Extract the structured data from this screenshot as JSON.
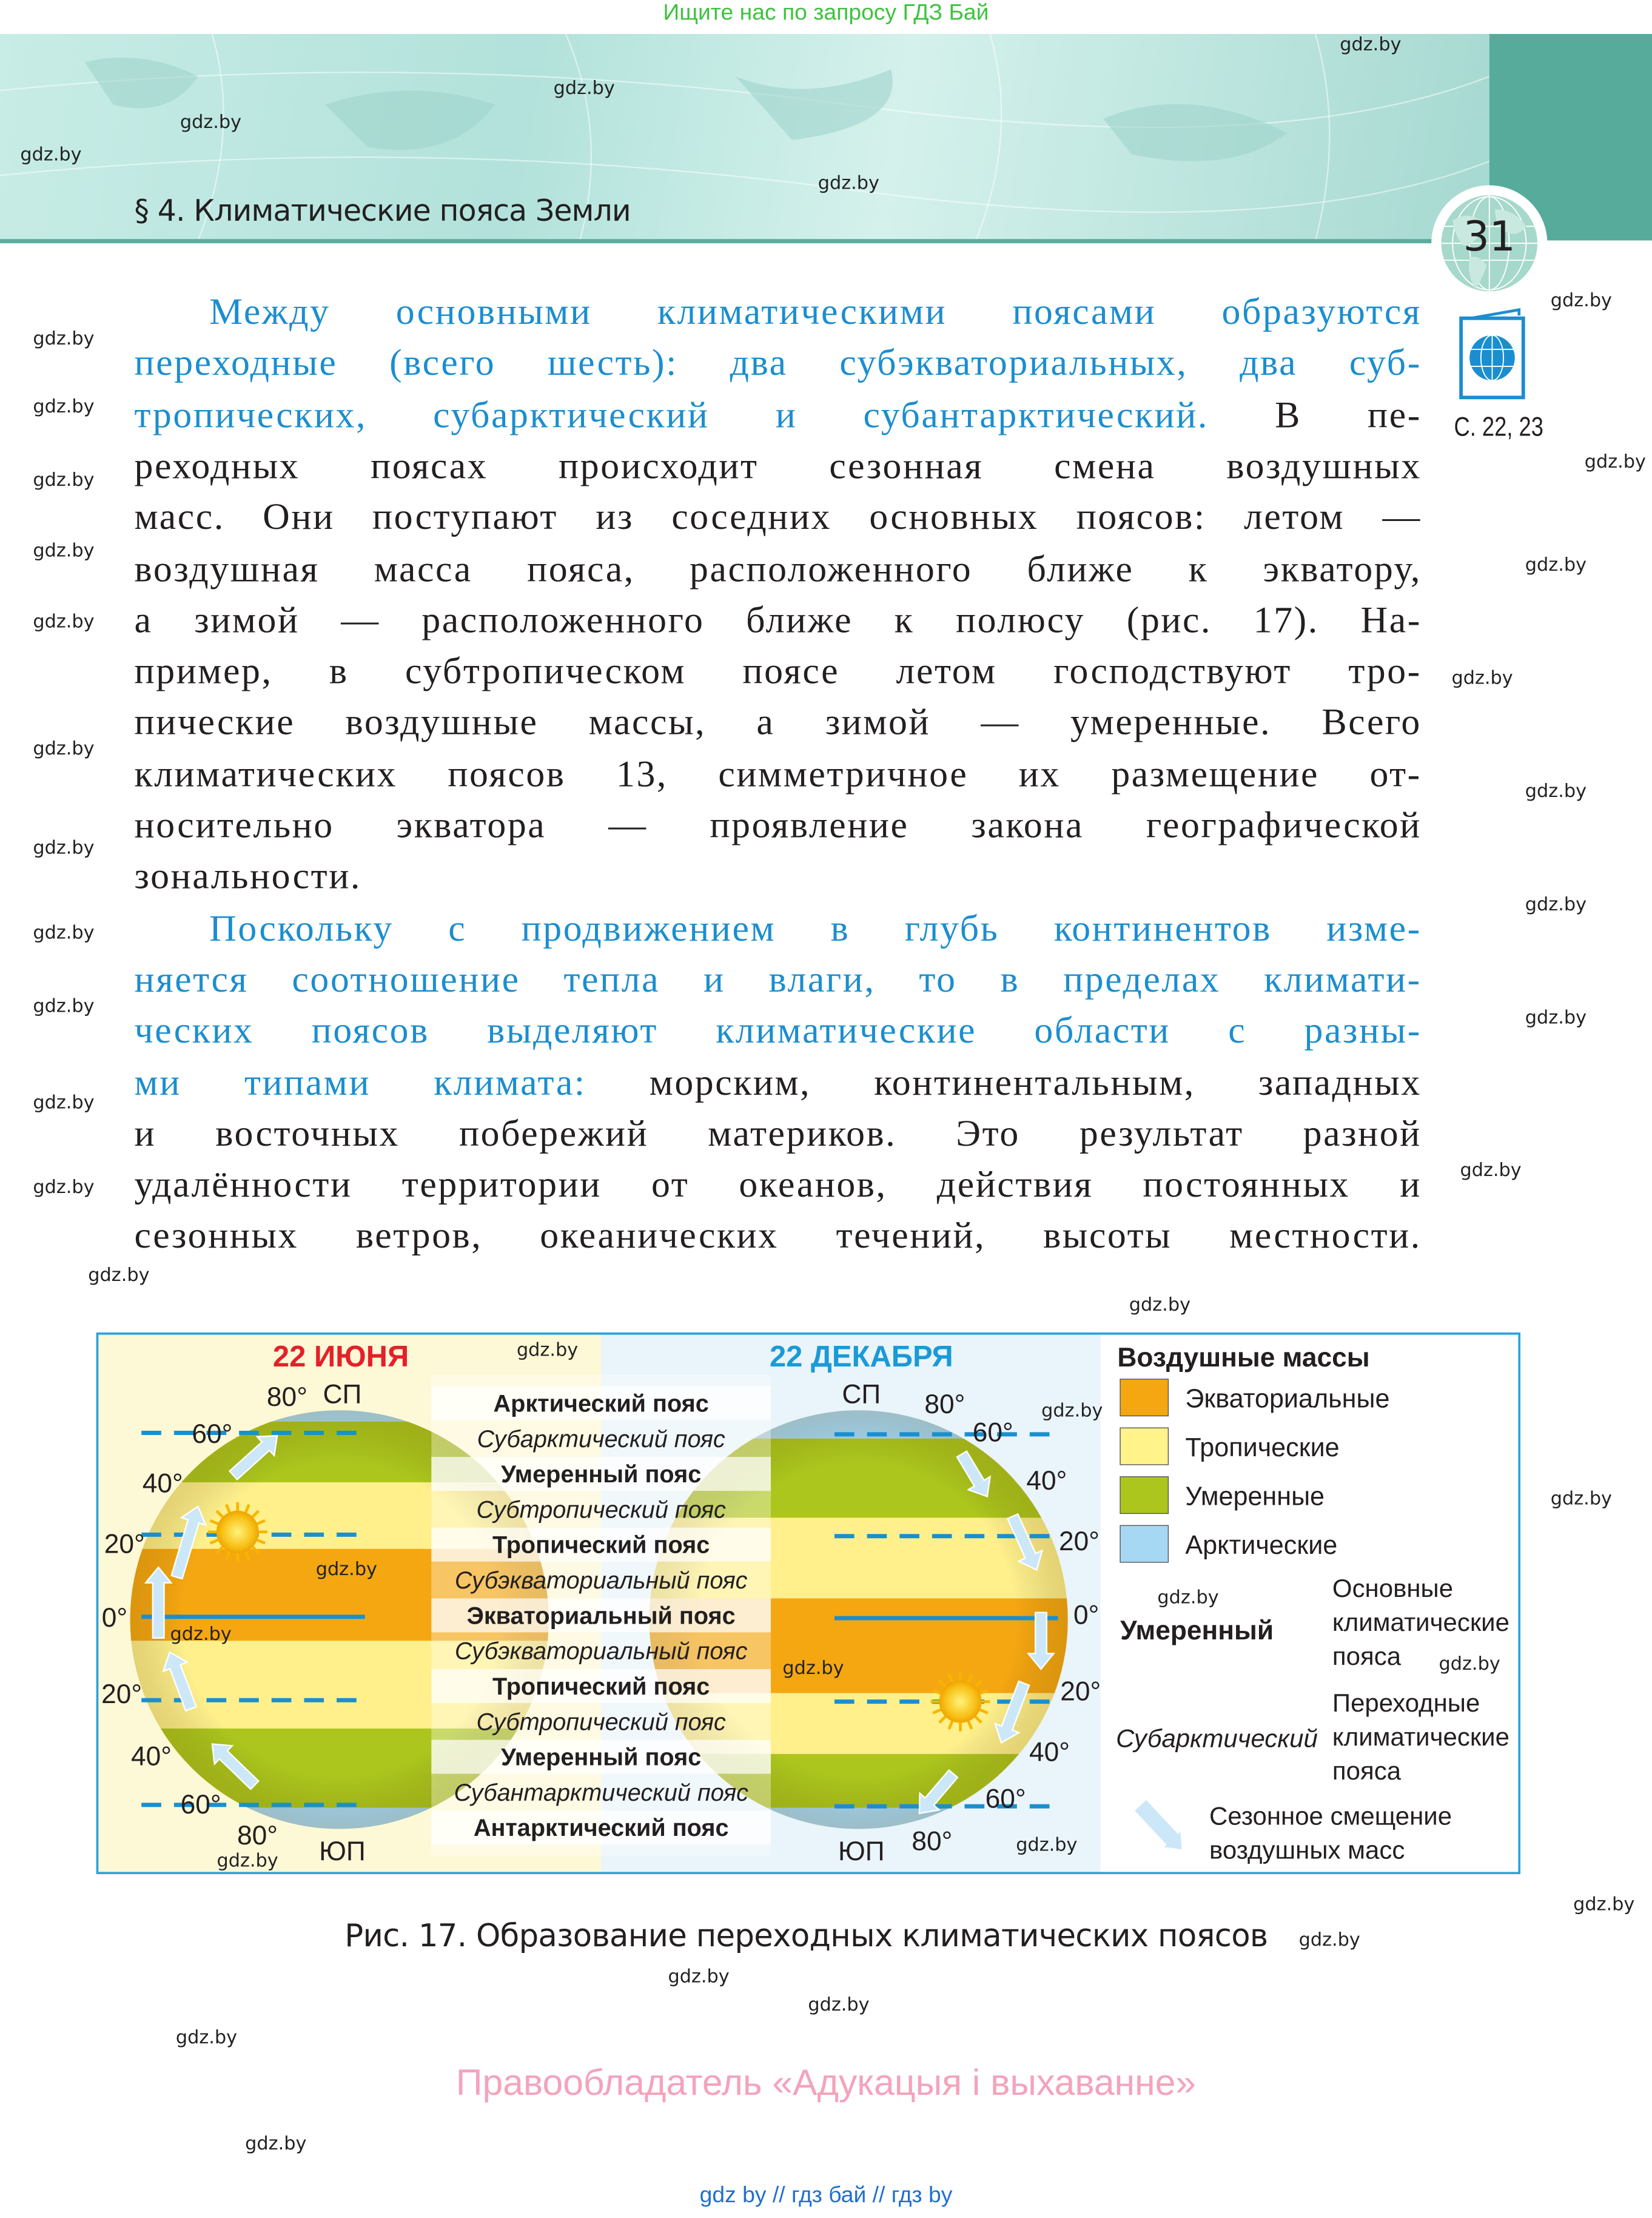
{
  "top_note": "Ищите нас по запросу ГДЗ Бай",
  "header": {
    "section_title": "§ 4. Климатические пояса Земли",
    "page_number": "31",
    "atlas_ref": "С. 22, 23"
  },
  "watermark": "gdz.by",
  "body": {
    "lines": [
      [
        {
          "t": "Между основными климатическими поясами образуются",
          "blue": true
        }
      ],
      [
        {
          "t": "переходные (всего шесть): два субэкваториальных, два суб-",
          "blue": true
        }
      ],
      [
        {
          "t": "тропических, субарктический и субантарктический.",
          "blue": true
        },
        {
          "t": " В пе-",
          "blue": false
        }
      ],
      [
        {
          "t": "реходных поясах происходит сезонная смена воздушных",
          "blue": false
        }
      ],
      [
        {
          "t": "масс. Они поступают из соседних основных поясов: летом —",
          "blue": false
        }
      ],
      [
        {
          "t": "воздушная масса пояса, расположенного ближе к экватору,",
          "blue": false
        }
      ],
      [
        {
          "t": "а зимой — расположенного ближе к полюсу (рис. 17). На-",
          "blue": false
        }
      ],
      [
        {
          "t": "пример, в субтропическом поясе летом господствуют тро-",
          "blue": false
        }
      ],
      [
        {
          "t": "пические воздушные массы, а зимой — умеренные. Всего",
          "blue": false
        }
      ],
      [
        {
          "t": "климатических поясов 13, симметричное их размещение от-",
          "blue": false
        }
      ],
      [
        {
          "t": "носительно экватора — проявление закона географической",
          "blue": false
        }
      ],
      [
        {
          "t": "зональности.",
          "blue": false
        }
      ],
      [
        {
          "t": "Поскольку с продвижением в глубь континентов изме-",
          "blue": true
        }
      ],
      [
        {
          "t": "няется соотношение тепла и влаги, то в пределах климати-",
          "blue": true
        }
      ],
      [
        {
          "t": "ческих поясов выделяют климатические области с разны-",
          "blue": true
        }
      ],
      [
        {
          "t": "ми типами климата:",
          "blue": true
        },
        {
          "t": " морским, континентальным, западных",
          "blue": false
        }
      ],
      [
        {
          "t": "и восточных побережий материков. Это результат разной",
          "blue": false
        }
      ],
      [
        {
          "t": "удалённости территории от океанов, действия постоянных и",
          "blue": false
        }
      ],
      [
        {
          "t": "сезонных ветров, океанических течений, высоты местности.",
          "blue": false
        }
      ]
    ]
  },
  "figure": {
    "june_title": "22 ИЮНЯ",
    "december_title": "22 ДЕКАБРЯ",
    "north_pole": "СП",
    "south_pole": "ЮП",
    "lat": {
      "l80": "80°",
      "l60": "60°",
      "l40": "40°",
      "l20": "20°",
      "l0": "0°"
    },
    "belts": [
      {
        "label": "Арктический пояс",
        "main": true
      },
      {
        "label": "Субарктический пояс",
        "main": false
      },
      {
        "label": "Умеренный пояс",
        "main": true
      },
      {
        "label": "Субтропический пояс",
        "main": false
      },
      {
        "label": "Тропический пояс",
        "main": true
      },
      {
        "label": "Субэкваториальный пояс",
        "main": false
      },
      {
        "label": "Экваториальный пояс",
        "main": true
      },
      {
        "label": "Субэкваториальный пояс",
        "main": false
      },
      {
        "label": "Тропический пояс",
        "main": true
      },
      {
        "label": "Субтропический пояс",
        "main": false
      },
      {
        "label": "Умеренный пояс",
        "main": true
      },
      {
        "label": "Субантарктический пояс",
        "main": false
      },
      {
        "label": "Антарктический пояс",
        "main": true
      }
    ],
    "legend": {
      "title": "Воздушные массы",
      "items": [
        {
          "label": "Экваториальные",
          "color": "#f5a711"
        },
        {
          "label": "Тропические",
          "color": "#fff38a"
        },
        {
          "label": "Умеренные",
          "color": "#adc61d"
        },
        {
          "label": "Арктические",
          "color": "#a7d8f3"
        }
      ],
      "main_example": "Умеренный",
      "main_desc": [
        "Основные",
        "климатические",
        "пояса"
      ],
      "trans_example": "Субарктический",
      "trans_desc": [
        "Переходные",
        "климатические",
        "пояса"
      ],
      "arrow_desc": [
        "Сезонное смещение",
        "воздушных масс"
      ]
    },
    "colors": {
      "june_title": "#e4202a",
      "december_title": "#1a9ad6",
      "border": "#29a3dc",
      "arrow": "#cce7f7"
    }
  },
  "caption": "Рис. 17. Образование переходных климатических поясов",
  "rights": "Правообладатель «Адукацыя і выхаванне»",
  "footer": "gdz by  //  гдз бай  //  гдз by"
}
